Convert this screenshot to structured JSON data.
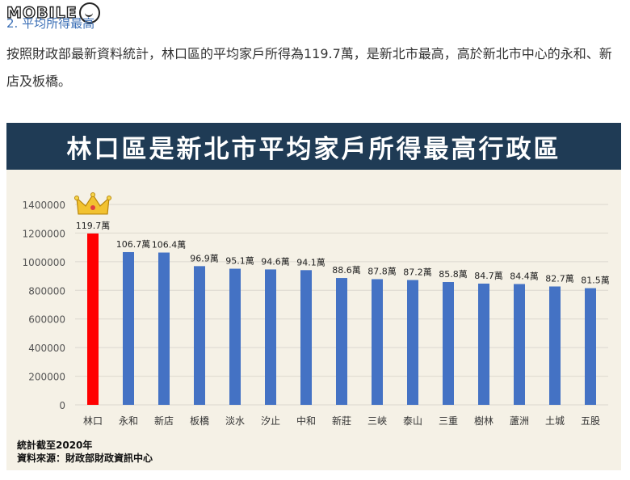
{
  "site": {
    "logo_text": "MOBILE",
    "logo_icon": "smiley-face-icon"
  },
  "article": {
    "section_heading": "2. 平均所得最高",
    "paragraph": "按照財政部最新資料統計，林口區的平均家戶所得為119.7萬，是新北市最高，高於新北市中心的永和、新店及板橋。"
  },
  "chart_data": {
    "type": "bar",
    "title": "林口區是新北市平均家戶所得最高行政區",
    "categories": [
      "林口",
      "永和",
      "新店",
      "板橋",
      "淡水",
      "汐止",
      "中和",
      "新莊",
      "三峽",
      "泰山",
      "三重",
      "樹林",
      "蘆洲",
      "土城",
      "五股"
    ],
    "values": [
      1197000,
      1067000,
      1064000,
      969000,
      951000,
      946000,
      941000,
      886000,
      878000,
      872000,
      858000,
      847000,
      844000,
      827000,
      815000
    ],
    "value_labels": [
      "119.7萬",
      "106.7萬",
      "106.4萬",
      "96.9萬",
      "95.1萬",
      "94.6萬",
      "94.1萬",
      "88.6萬",
      "87.8萬",
      "87.2萬",
      "85.8萬",
      "84.7萬",
      "84.4萬",
      "82.7萬",
      "81.5萬"
    ],
    "y_ticks": [
      "0",
      "200000",
      "400000",
      "600000",
      "800000",
      "1000000",
      "1200000",
      "1400000"
    ],
    "ylim": [
      0,
      1400000
    ],
    "grid": true,
    "bar_color": "#4472c4",
    "highlight_color": "#ff0000",
    "highlight_index": 0,
    "highlight_icon": "crown-icon",
    "notes": [
      "統計截至2020年",
      "資料來源：財政部財政資訊中心"
    ]
  }
}
